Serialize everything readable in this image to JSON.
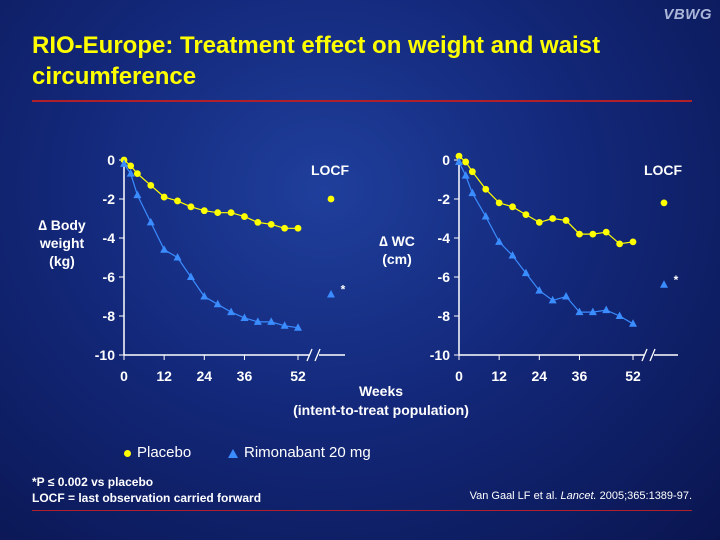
{
  "brand": "VBWG",
  "title": "RIO-Europe: Treatment effect on weight and waist circumference",
  "xlabel_line1": "Weeks",
  "xlabel_line2": "(intent-to-treat population)",
  "legend": {
    "placebo": "Placebo",
    "rimonabant": "Rimonabant 20 mg"
  },
  "footnotes": {
    "sig": "*P ≤ 0.002 vs placebo",
    "locf": "LOCF = last observation carried forward"
  },
  "citation": {
    "pre": "Van Gaal LF et al. ",
    "journal": "Lancet.",
    "post": " 2005;365:1389-97."
  },
  "colors": {
    "placebo": "#ffff00",
    "rimonabant": "#3a8cff",
    "title": "#ffff00",
    "rule": "#b0202a"
  },
  "chart_data": [
    {
      "type": "line",
      "ylabel": [
        "∆ Body",
        "weight",
        "(kg)"
      ],
      "xticks": [
        0,
        12,
        24,
        36,
        52
      ],
      "yticks": [
        0,
        -2,
        -4,
        -6,
        -8,
        -10
      ],
      "xlim": [
        0,
        52
      ],
      "ylim": [
        -10,
        0
      ],
      "locf_label": "LOCF",
      "sig_marker": "*",
      "series": [
        {
          "name": "Placebo",
          "x": [
            0,
            2,
            4,
            8,
            12,
            16,
            20,
            24,
            28,
            32,
            36,
            40,
            44,
            48,
            52
          ],
          "y": [
            0,
            -0.3,
            -0.7,
            -1.3,
            -1.9,
            -2.1,
            -2.4,
            -2.6,
            -2.7,
            -2.7,
            -2.9,
            -3.2,
            -3.3,
            -3.5,
            -3.5
          ],
          "locf": -2.0
        },
        {
          "name": "Rimonabant 20 mg",
          "x": [
            0,
            2,
            4,
            8,
            12,
            16,
            20,
            24,
            28,
            32,
            36,
            40,
            44,
            48,
            52
          ],
          "y": [
            -0.2,
            -0.7,
            -1.8,
            -3.2,
            -4.6,
            -5.0,
            -6.0,
            -7.0,
            -7.4,
            -7.8,
            -8.1,
            -8.3,
            -8.3,
            -8.5,
            -8.6
          ],
          "locf": -6.9
        }
      ]
    },
    {
      "type": "line",
      "ylabel": [
        "∆ WC",
        "(cm)"
      ],
      "xticks": [
        0,
        12,
        24,
        36,
        52
      ],
      "yticks": [
        0,
        -2,
        -4,
        -6,
        -8,
        -10
      ],
      "xlim": [
        0,
        52
      ],
      "ylim": [
        -10,
        0
      ],
      "locf_label": "LOCF",
      "sig_marker": "*",
      "series": [
        {
          "name": "Placebo",
          "x": [
            0,
            2,
            4,
            8,
            12,
            16,
            20,
            24,
            28,
            32,
            36,
            40,
            44,
            48,
            52
          ],
          "y": [
            0.2,
            -0.1,
            -0.6,
            -1.5,
            -2.2,
            -2.4,
            -2.8,
            -3.2,
            -3.0,
            -3.1,
            -3.8,
            -3.8,
            -3.7,
            -4.3,
            -4.2
          ],
          "locf": -2.2
        },
        {
          "name": "Rimonabant 20 mg",
          "x": [
            0,
            2,
            4,
            8,
            12,
            16,
            20,
            24,
            28,
            32,
            36,
            40,
            44,
            48,
            52
          ],
          "y": [
            -0.1,
            -0.8,
            -1.7,
            -2.9,
            -4.2,
            -4.9,
            -5.8,
            -6.7,
            -7.2,
            -7.0,
            -7.8,
            -7.8,
            -7.7,
            -8.0,
            -8.4
          ],
          "locf": -6.4
        }
      ]
    }
  ]
}
